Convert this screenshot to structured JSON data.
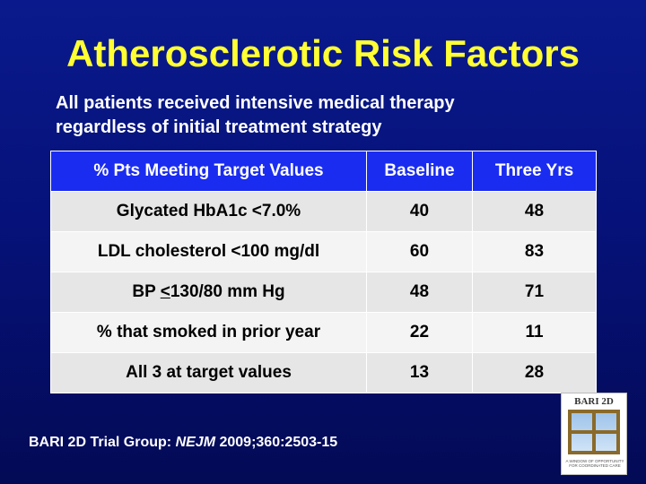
{
  "slide": {
    "title": "Atherosclerotic Risk Factors",
    "subtitle_line1": "All patients received intensive medical therapy",
    "subtitle_line2": "regardless of initial treatment strategy"
  },
  "table": {
    "headers": [
      "% Pts Meeting Target Values",
      "Baseline",
      "Three Yrs"
    ],
    "rows": [
      {
        "label": "Glycated HbA1c <7.0%",
        "baseline": "40",
        "three_yrs": "48"
      },
      {
        "label": "LDL cholesterol <100 mg/dl",
        "baseline": "60",
        "three_yrs": "83"
      },
      {
        "label_prefix": "BP ",
        "label_underlined": "<",
        "label_suffix": "130/80 mm Hg",
        "baseline": "48",
        "three_yrs": "71"
      },
      {
        "label": "% that smoked in prior year",
        "baseline": "22",
        "three_yrs": "11"
      },
      {
        "label": "All 3 at target values",
        "baseline": "13",
        "three_yrs": "28"
      }
    ]
  },
  "citation": {
    "prefix": "BARI 2D Trial Group: ",
    "journal": "NEJM",
    "suffix": " 2009;360:2503-15"
  },
  "logo": {
    "title": "BARI 2D",
    "tagline_line1": "A WINDOW OF OPPORTUNITY",
    "tagline_line2": "FOR COORDINATED CARE"
  },
  "colors": {
    "background": "#06127a",
    "title": "#ffff33",
    "header_fill": "#1a2cf0"
  }
}
